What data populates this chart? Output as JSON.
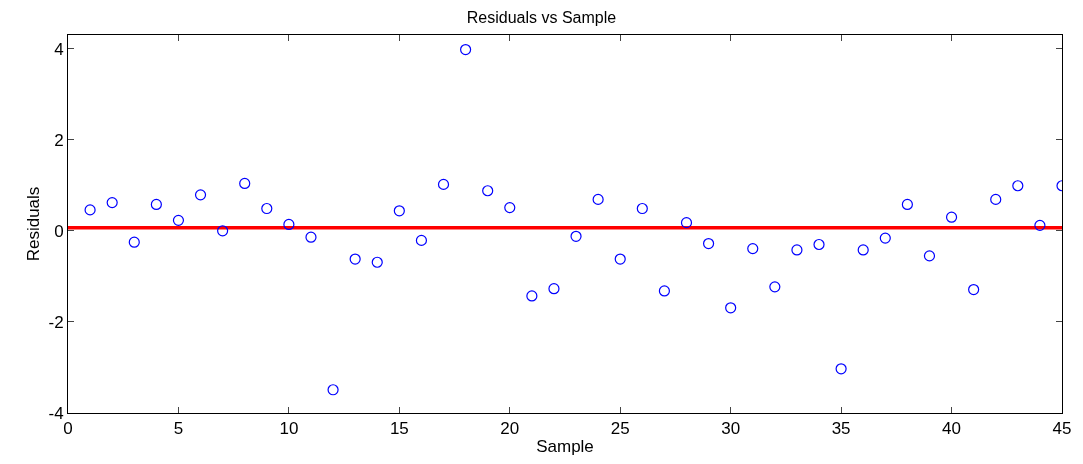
{
  "chart_data": {
    "type": "scatter",
    "title": "Residuals vs Sample",
    "xlabel": "Sample",
    "ylabel": "Residuals",
    "x": [
      1,
      2,
      3,
      4,
      5,
      6,
      7,
      8,
      9,
      10,
      11,
      12,
      13,
      14,
      15,
      16,
      17,
      18,
      19,
      20,
      21,
      22,
      23,
      24,
      25,
      26,
      27,
      28,
      29,
      30,
      31,
      32,
      33,
      34,
      35,
      36,
      37,
      38,
      39,
      40,
      41,
      42,
      43,
      44,
      45
    ],
    "series": [
      {
        "color": "#0000ff",
        "values": [
          0.46,
          0.62,
          -0.25,
          0.58,
          0.23,
          0.79,
          0.0,
          1.04,
          0.49,
          0.14,
          -0.14,
          -3.49,
          -0.62,
          -0.69,
          0.44,
          -0.21,
          1.02,
          3.98,
          0.88,
          0.51,
          -1.43,
          -1.27,
          -0.12,
          0.69,
          -0.62,
          0.49,
          -1.32,
          0.18,
          -0.28,
          -1.69,
          -0.39,
          -1.23,
          -0.42,
          -0.3,
          -3.03,
          -0.42,
          -0.16,
          0.58,
          -0.55,
          0.3,
          -1.29,
          0.69,
          0.99,
          0.12,
          0.99
        ]
      }
    ],
    "marker": "circle",
    "ref_lines": [
      {
        "axis": "y",
        "value": 0.07,
        "color": "#ff0000"
      }
    ],
    "xlim": [
      0,
      45
    ],
    "xticks": [
      0,
      5,
      10,
      15,
      20,
      25,
      30,
      35,
      40,
      45
    ],
    "ylim": [
      -4,
      4.3
    ],
    "yticks": [
      -4,
      -2,
      0,
      2,
      4
    ],
    "grid": false
  }
}
